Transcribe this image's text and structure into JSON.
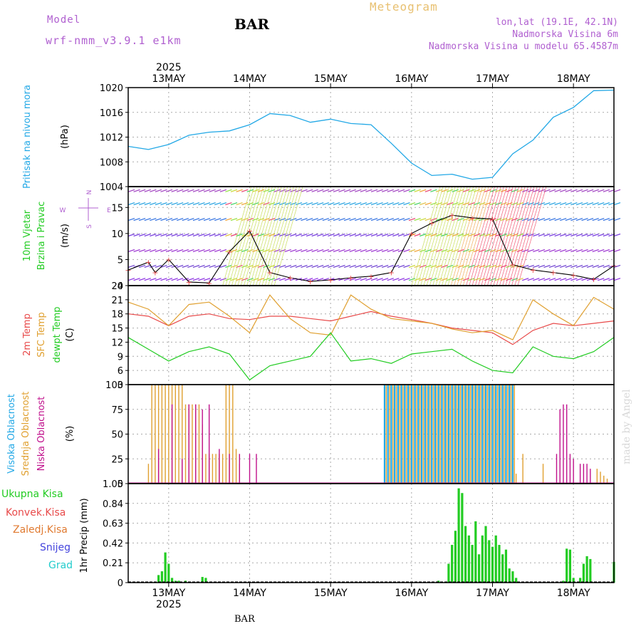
{
  "header": {
    "model_label": "Model",
    "model_name": "wrf-nmm_v3.9.1 e1km",
    "station": "BAR",
    "meteogram": "Meteogram",
    "location": "lon,lat (19.1E, 42.1N)",
    "altitude": "Nadmorska Visina 6m",
    "model_altitude": "Nadmorska Visina u modelu 65.4587m",
    "footer_station": "BAR",
    "credit": "made by Angel",
    "year": "2025"
  },
  "colors": {
    "pressure": "#22a8e6",
    "wind_label": "#22cc22",
    "temp2m": "#e84a4a",
    "sfc": "#e0a030",
    "dewpt": "#22cc22",
    "high_cloud": "#22a8e6",
    "mid_cloud": "#e0a030",
    "low_cloud": "#c0108c",
    "purple": "#b060d0",
    "precip_total": "#22cc22",
    "precip_conv": "#e84a4a",
    "precip_frozen": "#e07a30",
    "snow": "#4444dd",
    "hail": "#22cccc"
  },
  "chart_data": [
    {
      "type": "line",
      "name": "pressure",
      "ylabel_title": "Pritisak na nivou mora",
      "ylabel_unit": "(hPa)",
      "ylim": [
        1004,
        1020
      ],
      "yticks": [
        1004,
        1008,
        1012,
        1016,
        1020
      ],
      "x_hours": [
        0,
        6,
        12,
        18,
        24,
        30,
        36,
        42,
        48,
        54,
        60,
        66,
        72,
        78,
        84,
        90,
        96,
        102,
        108,
        114,
        120,
        126,
        132,
        138,
        144
      ],
      "values": [
        1010.5,
        1010.0,
        1010.8,
        1012.3,
        1012.8,
        1013.0,
        1014.0,
        1015.8,
        1015.5,
        1014.4,
        1014.9,
        1014.2,
        1014.0,
        1011.0,
        1007.8,
        1005.8,
        1006.0,
        1005.2,
        1005.5,
        1009.3,
        1011.5,
        1015.2,
        1016.8,
        1019.5,
        1019.6
      ]
    },
    {
      "type": "line",
      "name": "wind",
      "ylabel_title1": "10m Vjetar",
      "ylabel_title2": "Brzina i Pravac",
      "ylabel_unit": "(m/s)",
      "compass": [
        "N",
        "S",
        "E",
        "W"
      ],
      "ylim": [
        0,
        19
      ],
      "yticks": [
        0,
        5,
        10,
        15
      ],
      "x_hours": [
        0,
        6,
        8,
        12,
        18,
        24,
        30,
        36,
        42,
        48,
        54,
        60,
        66,
        72,
        78,
        84,
        90,
        96,
        102,
        108,
        114,
        120,
        126,
        132,
        138,
        144
      ],
      "values": [
        3.0,
        4.5,
        2.5,
        5.0,
        0.7,
        0.5,
        6.5,
        10.5,
        2.5,
        1.5,
        0.8,
        1.1,
        1.5,
        1.8,
        2.5,
        10.0,
        12.0,
        13.5,
        13.0,
        12.8,
        4.0,
        3.0,
        2.5,
        2.0,
        1.2,
        3.8
      ]
    },
    {
      "type": "line",
      "name": "temperature",
      "ylabel_title1": "2m Temp",
      "ylabel_title2": "SFC Temp",
      "ylabel_title3": "dewpt Temp",
      "ylabel_unit": "(C)",
      "ylim": [
        3,
        24
      ],
      "yticks": [
        3,
        6,
        9,
        12,
        15,
        18,
        21,
        24
      ],
      "x_hours": [
        0,
        6,
        12,
        18,
        24,
        30,
        36,
        42,
        48,
        54,
        60,
        66,
        72,
        78,
        84,
        90,
        96,
        102,
        108,
        114,
        120,
        126,
        132,
        138,
        144
      ],
      "series": [
        {
          "name": "2m Temp",
          "values": [
            18.0,
            17.5,
            15.5,
            17.5,
            18.0,
            17.0,
            16.8,
            17.5,
            17.5,
            17.0,
            16.5,
            17.5,
            18.5,
            17.5,
            16.8,
            16.0,
            15.0,
            14.5,
            14.0,
            11.5,
            14.5,
            16.0,
            15.5,
            16.0,
            16.5
          ]
        },
        {
          "name": "SFC Temp",
          "values": [
            20.5,
            19.0,
            15.5,
            20.0,
            20.5,
            17.5,
            14.0,
            22.0,
            17.0,
            14.0,
            13.5,
            22.0,
            19.0,
            17.0,
            16.5,
            16.0,
            14.8,
            14.0,
            14.5,
            12.5,
            21.0,
            18.0,
            15.5,
            21.5,
            19.0
          ]
        },
        {
          "name": "dewpt Temp",
          "values": [
            13.0,
            10.5,
            8.0,
            10.0,
            11.0,
            9.5,
            4.0,
            7.0,
            8.0,
            9.0,
            14.0,
            8.0,
            8.5,
            7.5,
            9.5,
            10.0,
            10.5,
            8.0,
            6.0,
            5.5,
            11.0,
            9.0,
            8.5,
            10.0,
            13.0
          ]
        }
      ]
    },
    {
      "type": "bar",
      "name": "clouds",
      "ylabel_title1": "Visoka Oblacnost",
      "ylabel_title2": "Srednja Oblacnost",
      "ylabel_title3": "Niska Oblacnost",
      "ylabel_unit": "(%)",
      "ylim": [
        0,
        100
      ],
      "yticks": [
        0,
        25,
        50,
        75,
        100
      ],
      "series": [
        {
          "name": "Srednja Oblacnost",
          "x_hours": [
            6,
            7,
            8,
            9,
            10,
            11,
            12,
            13,
            14,
            15,
            16,
            17,
            18,
            19,
            20,
            21,
            22,
            23,
            24,
            25,
            26,
            27,
            28,
            29,
            30,
            31,
            32,
            33
          ],
          "values": [
            20,
            100,
            100,
            100,
            100,
            100,
            100,
            100,
            100,
            100,
            100,
            80,
            80,
            80,
            80,
            80,
            60,
            30,
            30,
            30,
            30,
            30,
            30,
            100,
            100,
            100,
            35,
            20
          ]
        },
        {
          "name": "Niska Oblacnost",
          "x_hours": [
            9,
            13,
            16,
            18,
            20,
            22,
            24,
            27,
            30,
            33,
            36,
            38,
            127,
            128,
            129,
            130,
            131,
            132,
            134,
            135,
            136,
            137
          ],
          "values": [
            35,
            80,
            25,
            80,
            80,
            75,
            80,
            35,
            30,
            30,
            30,
            30,
            30,
            75,
            80,
            80,
            30,
            25,
            20,
            20,
            20,
            15
          ]
        },
        {
          "name": "Visoka Oblacnost",
          "x_hours": [
            76,
            77,
            78,
            79,
            80,
            81,
            82,
            83,
            84,
            85,
            86,
            87,
            88,
            89,
            90,
            91,
            92,
            93,
            94,
            95,
            96,
            97,
            98,
            99,
            100,
            101,
            102,
            103,
            104,
            105,
            106,
            107,
            108,
            109,
            110,
            111,
            112,
            113,
            114
          ],
          "values": [
            100,
            100,
            100,
            100,
            100,
            100,
            100,
            100,
            100,
            100,
            100,
            100,
            100,
            100,
            100,
            100,
            100,
            100,
            100,
            100,
            100,
            100,
            100,
            100,
            100,
            100,
            100,
            100,
            100,
            100,
            100,
            100,
            100,
            100,
            100,
            100,
            100,
            100,
            100
          ]
        },
        {
          "name": "Srednja Oblacnost",
          "x_hours": [
            76.5,
            77.5,
            78.5,
            79.5,
            80.5,
            81.5,
            82.5,
            83.5,
            84.5,
            85.5,
            86.5,
            87.5,
            88.5,
            89.5,
            90.5,
            91.5,
            92.5,
            93.5,
            94.5,
            95.5,
            96.5,
            97.5,
            98.5,
            99.5,
            100.5,
            101.5,
            102.5,
            103.5,
            104.5,
            105.5,
            106.5,
            107.5,
            108.5,
            109.5,
            110.5,
            111.5,
            112.5,
            113.5,
            114.5,
            115,
            117,
            123,
            139,
            140,
            141,
            142
          ],
          "values": [
            100,
            100,
            100,
            100,
            100,
            100,
            100,
            100,
            100,
            100,
            100,
            100,
            100,
            100,
            100,
            100,
            100,
            100,
            100,
            100,
            100,
            100,
            100,
            100,
            100,
            100,
            100,
            100,
            100,
            100,
            100,
            100,
            100,
            100,
            100,
            100,
            100,
            100,
            100,
            10,
            30,
            20,
            15,
            12,
            8,
            5
          ]
        }
      ]
    },
    {
      "type": "bar",
      "name": "precipitation",
      "legend": [
        "Ukupna Kisa",
        "Konvek.Kisa",
        "Zaledj.Kisa",
        "Snijeg",
        "Grad"
      ],
      "ylabel_unit": "1hr Precip (mm)",
      "ylim": [
        0,
        1.05
      ],
      "yticks": [
        0,
        0.21,
        0.42,
        0.63,
        0.84,
        1.05
      ],
      "x_hours": [
        9,
        10,
        11,
        12,
        13,
        14,
        15,
        17,
        22,
        23,
        92,
        95,
        96,
        97,
        98,
        99,
        100,
        101,
        102,
        103,
        104,
        105,
        106,
        107,
        108,
        109,
        110,
        111,
        112,
        113,
        114,
        115,
        129,
        130,
        131,
        132,
        134,
        135,
        136,
        137,
        144
      ],
      "values": [
        0.08,
        0.12,
        0.32,
        0.2,
        0.05,
        0.02,
        0.02,
        0.02,
        0.06,
        0.05,
        0.02,
        0.2,
        0.4,
        0.55,
        1.0,
        0.95,
        0.6,
        0.5,
        0.4,
        0.65,
        0.3,
        0.5,
        0.6,
        0.45,
        0.38,
        0.5,
        0.4,
        0.3,
        0.35,
        0.15,
        0.12,
        0.05,
        0.02,
        0.36,
        0.35,
        0.05,
        0.05,
        0.2,
        0.28,
        0.25,
        0.22
      ]
    }
  ],
  "x_axis": {
    "start_hour": 0,
    "end_hour": 144,
    "day_labels": [
      "13MAY",
      "14MAY",
      "15MAY",
      "16MAY",
      "17MAY",
      "18MAY"
    ],
    "day_hours": [
      12,
      36,
      60,
      84,
      108,
      132
    ]
  }
}
